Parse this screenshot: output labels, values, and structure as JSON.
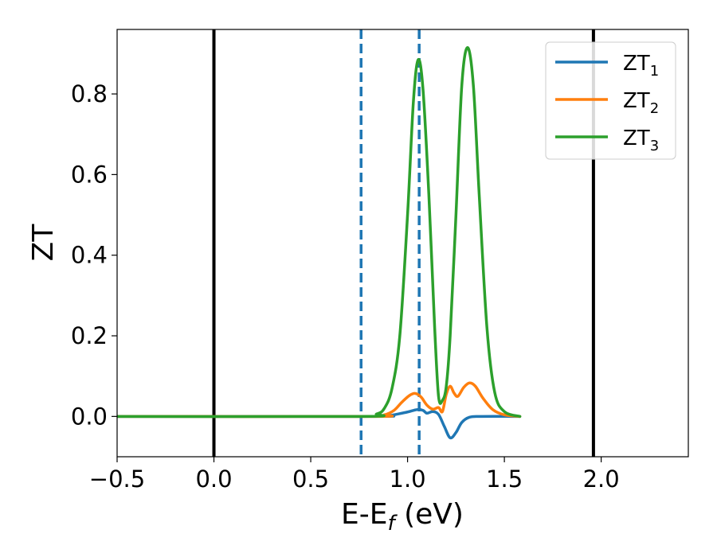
{
  "chart_data": {
    "type": "line",
    "xlabel": {
      "main": "E-E",
      "sub": "f",
      "rest": " (eV)"
    },
    "ylabel": "ZT",
    "xlim": [
      -0.5,
      2.45
    ],
    "ylim": [
      -0.1,
      0.96
    ],
    "xticks": [
      -0.5,
      0.0,
      0.5,
      1.0,
      1.5,
      2.0
    ],
    "xtick_labels": [
      "−0.5",
      "0.0",
      "0.5",
      "1.0",
      "1.5",
      "2.0"
    ],
    "yticks": [
      0.0,
      0.2,
      0.4,
      0.6,
      0.8
    ],
    "ytick_labels": [
      "0.0",
      "0.2",
      "0.4",
      "0.6",
      "0.8"
    ],
    "grid": false,
    "legend_placement": "top-right",
    "vertical_lines": [
      {
        "x": 0.0,
        "style": "solid",
        "color": "#000000"
      },
      {
        "x": 1.96,
        "style": "solid",
        "color": "#000000"
      },
      {
        "x": 0.76,
        "style": "dashed",
        "color": "#1f77b4"
      },
      {
        "x": 1.06,
        "style": "dashed",
        "color": "#1f77b4"
      }
    ],
    "series": [
      {
        "name": "ZT",
        "name_sub": "1",
        "color": "#1f77b4",
        "points": [
          [
            -0.5,
            0.0
          ],
          [
            0.8,
            0.0
          ],
          [
            0.9,
            0.002
          ],
          [
            0.95,
            0.006
          ],
          [
            1.0,
            0.011
          ],
          [
            1.05,
            0.017
          ],
          [
            1.08,
            0.015
          ],
          [
            1.1,
            0.008
          ],
          [
            1.13,
            0.012
          ],
          [
            1.16,
            0.005
          ],
          [
            1.19,
            -0.025
          ],
          [
            1.22,
            -0.053
          ],
          [
            1.25,
            -0.04
          ],
          [
            1.28,
            -0.015
          ],
          [
            1.32,
            -0.002
          ],
          [
            1.38,
            0.0
          ],
          [
            1.58,
            0.0
          ]
        ]
      },
      {
        "name": "ZT",
        "name_sub": "2",
        "color": "#ff7f0e",
        "points": [
          [
            -0.5,
            0.0
          ],
          [
            0.8,
            0.0
          ],
          [
            0.88,
            0.004
          ],
          [
            0.93,
            0.015
          ],
          [
            0.97,
            0.035
          ],
          [
            1.01,
            0.052
          ],
          [
            1.04,
            0.057
          ],
          [
            1.07,
            0.048
          ],
          [
            1.1,
            0.028
          ],
          [
            1.13,
            0.018
          ],
          [
            1.16,
            0.022
          ],
          [
            1.18,
            0.012
          ],
          [
            1.2,
            0.055
          ],
          [
            1.22,
            0.075
          ],
          [
            1.24,
            0.058
          ],
          [
            1.26,
            0.05
          ],
          [
            1.29,
            0.072
          ],
          [
            1.32,
            0.083
          ],
          [
            1.35,
            0.075
          ],
          [
            1.39,
            0.045
          ],
          [
            1.44,
            0.017
          ],
          [
            1.5,
            0.004
          ],
          [
            1.58,
            0.0
          ]
        ]
      },
      {
        "name": "ZT",
        "name_sub": "3",
        "color": "#2ca02c",
        "points": [
          [
            -0.5,
            0.0
          ],
          [
            0.76,
            0.0
          ],
          [
            0.84,
            0.006
          ],
          [
            0.88,
            0.02
          ],
          [
            0.92,
            0.07
          ],
          [
            0.96,
            0.2
          ],
          [
            1.0,
            0.5
          ],
          [
            1.03,
            0.78
          ],
          [
            1.055,
            0.885
          ],
          [
            1.08,
            0.81
          ],
          [
            1.11,
            0.55
          ],
          [
            1.14,
            0.22
          ],
          [
            1.16,
            0.05
          ],
          [
            1.18,
            0.04
          ],
          [
            1.2,
            0.075
          ],
          [
            1.22,
            0.2
          ],
          [
            1.25,
            0.5
          ],
          [
            1.28,
            0.82
          ],
          [
            1.31,
            0.915
          ],
          [
            1.34,
            0.82
          ],
          [
            1.37,
            0.55
          ],
          [
            1.41,
            0.22
          ],
          [
            1.45,
            0.06
          ],
          [
            1.5,
            0.012
          ],
          [
            1.58,
            0.0
          ]
        ]
      }
    ]
  }
}
